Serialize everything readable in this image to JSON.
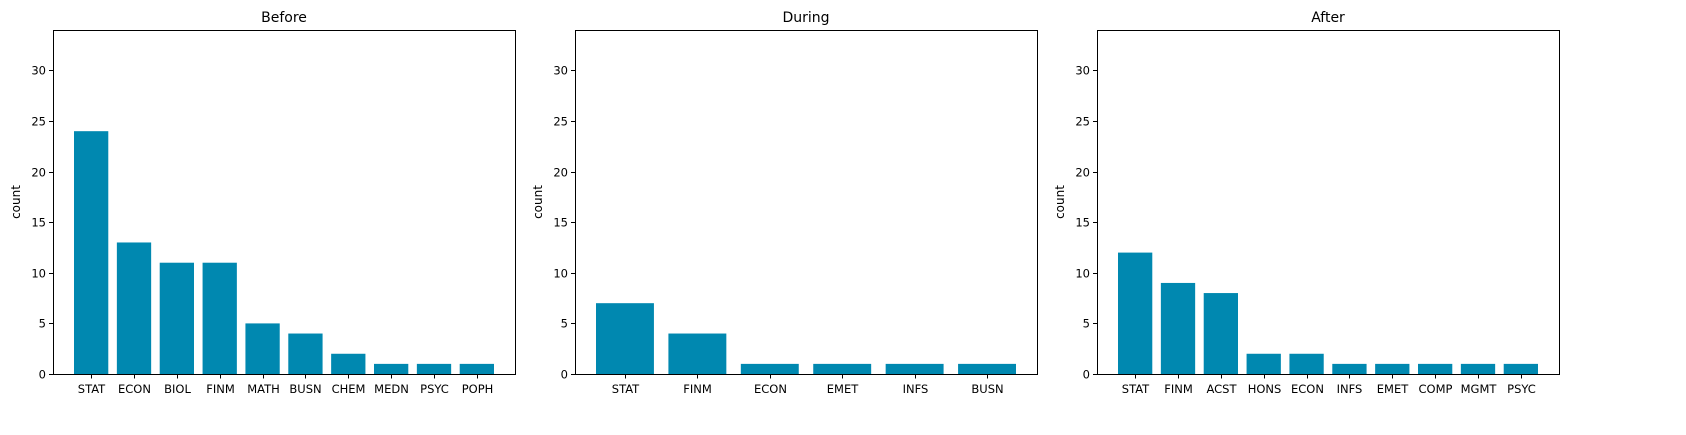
{
  "chart_data": [
    {
      "type": "bar",
      "title": "Before",
      "xlabel": "",
      "ylabel": "count",
      "ylim": [
        0,
        34
      ],
      "yticks": [
        0,
        5,
        10,
        15,
        20,
        25,
        30
      ],
      "grid": false,
      "bar_color": "#0088b0",
      "categories": [
        "STAT",
        "ECON",
        "BIOL",
        "FINM",
        "MATH",
        "BUSN",
        "CHEM",
        "MEDN",
        "PSYC",
        "POPH"
      ],
      "values": [
        24,
        13,
        11,
        11,
        5,
        4,
        2,
        1,
        1,
        1
      ]
    },
    {
      "type": "bar",
      "title": "During",
      "xlabel": "",
      "ylabel": "count",
      "ylim": [
        0,
        34
      ],
      "yticks": [
        0,
        5,
        10,
        15,
        20,
        25,
        30
      ],
      "grid": false,
      "bar_color": "#0088b0",
      "categories": [
        "STAT",
        "FINM",
        "ECON",
        "EMET",
        "INFS",
        "BUSN"
      ],
      "values": [
        7,
        4,
        1,
        1,
        1,
        1
      ]
    },
    {
      "type": "bar",
      "title": "After",
      "xlabel": "",
      "ylabel": "count",
      "ylim": [
        0,
        34
      ],
      "yticks": [
        0,
        5,
        10,
        15,
        20,
        25,
        30
      ],
      "grid": false,
      "bar_color": "#0088b0",
      "categories": [
        "STAT",
        "FINM",
        "ACST",
        "HONS",
        "ECON",
        "INFS",
        "EMET",
        "COMP",
        "MGMT",
        "PSYC"
      ],
      "values": [
        12,
        9,
        8,
        2,
        2,
        1,
        1,
        1,
        1,
        1
      ]
    }
  ]
}
